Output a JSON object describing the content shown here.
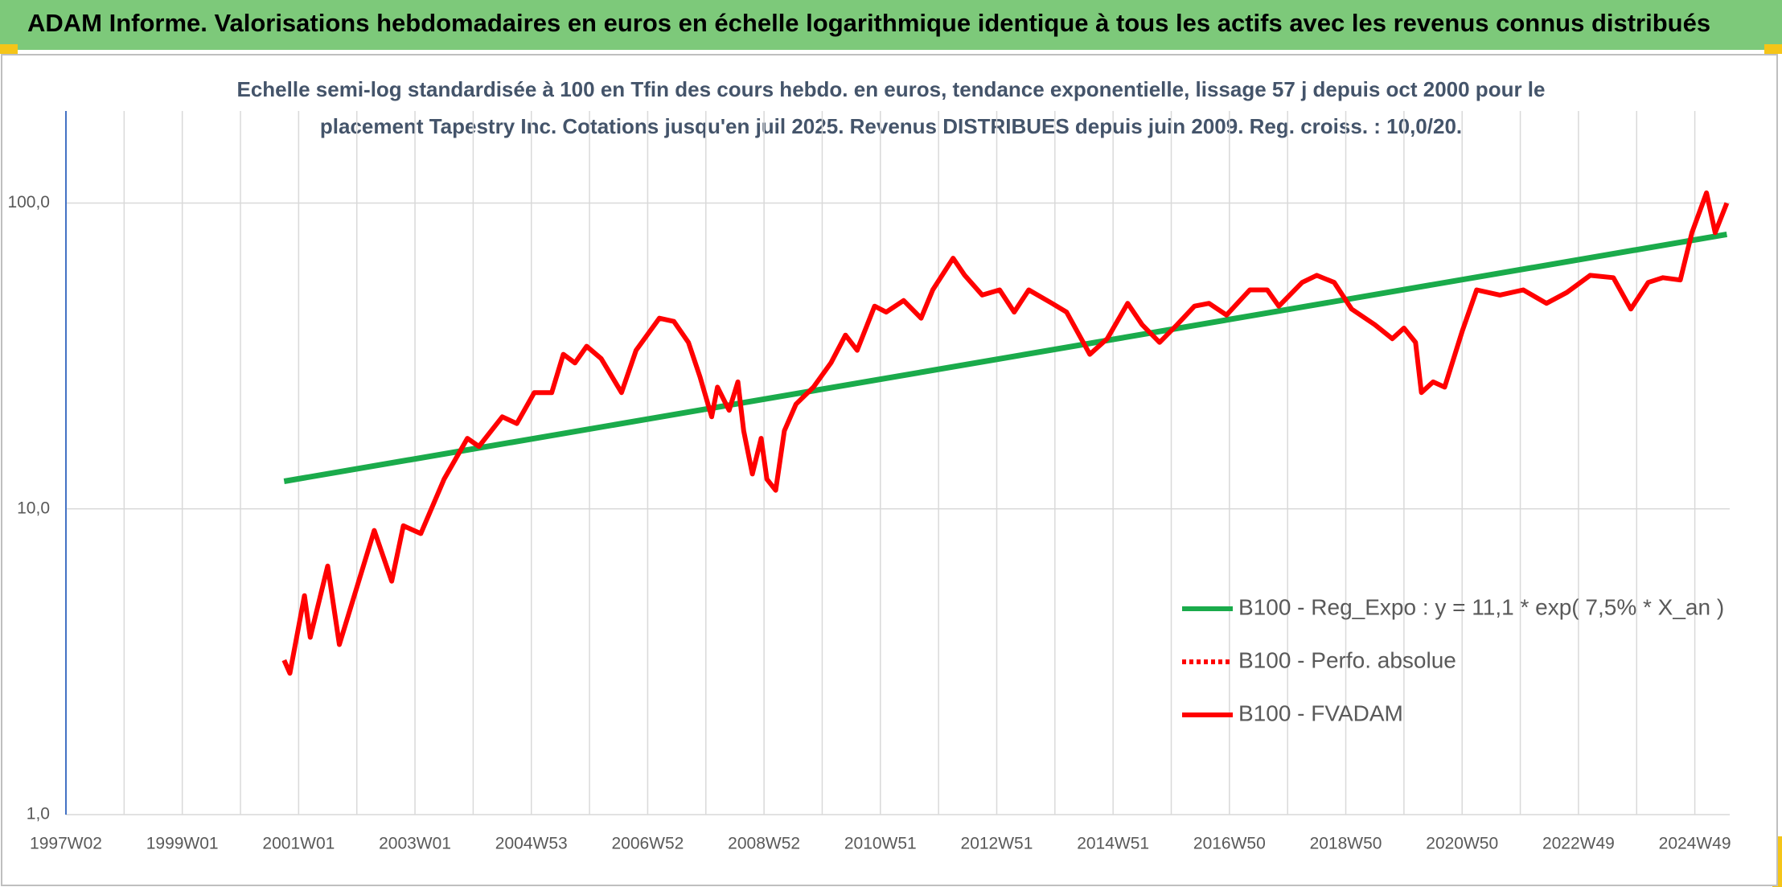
{
  "chart_data": {
    "type": "line",
    "title": "ADAM Informe. Valorisations hebdomadaires en euros en échelle logarithmique identique à tous les actifs avec les revenus connus distribués",
    "subtitle": [
      "Echelle semi-log standardisée à 100 en Tfin des cours hebdo. en euros, tendance exponentielle, lissage 57 j depuis oct 2000 pour le",
      "placement Tapestry Inc. Cotations jusqu'en juil 2025. Revenus DISTRIBUES depuis juin 2009. Reg. croiss. : 10,0/20."
    ],
    "log_scale": true,
    "grid": true,
    "xlim": [
      1997,
      2025.6
    ],
    "xticks": [
      {
        "value": 1997,
        "label": "1997W02"
      },
      {
        "value": 1999,
        "label": "1999W01"
      },
      {
        "value": 2001,
        "label": "2001W01"
      },
      {
        "value": 2003,
        "label": "2003W01"
      },
      {
        "value": 2005,
        "label": "2004W53"
      },
      {
        "value": 2007,
        "label": "2006W52"
      },
      {
        "value": 2009,
        "label": "2008W52"
      },
      {
        "value": 2011,
        "label": "2010W51"
      },
      {
        "value": 2013,
        "label": "2012W51"
      },
      {
        "value": 2015,
        "label": "2014W51"
      },
      {
        "value": 2017,
        "label": "2016W50"
      },
      {
        "value": 2019,
        "label": "2018W50"
      },
      {
        "value": 2021,
        "label": "2020W50"
      },
      {
        "value": 2023,
        "label": "2022W49"
      },
      {
        "value": 2025,
        "label": "2024W49"
      }
    ],
    "xgrid": [
      1998,
      2000,
      2002,
      2004,
      2006,
      2008,
      2010,
      2012,
      2014,
      2016,
      2018,
      2020,
      2022,
      2024
    ],
    "ylim": [
      1,
      200
    ],
    "yticks": [
      {
        "value": 1,
        "label": "1,0"
      },
      {
        "value": 10,
        "label": "10,0"
      },
      {
        "value": 100,
        "label": "100,0"
      }
    ],
    "series": [
      {
        "name": "B100 - Reg_Expo : y = 11,1 * exp( 7,5% *  X_an )",
        "color": "#1aab4b",
        "style": "solid",
        "x": [
          2000.75,
          2025.55
        ],
        "values": [
          12.3,
          79
        ]
      },
      {
        "name": "B100 - Perfo. absolue",
        "color": "#ff0000",
        "style": "dotted"
      },
      {
        "name": "B100 - FVADAM",
        "color": "#ff0000",
        "style": "solid",
        "x": [
          2000.75,
          2000.85,
          2001.1,
          2001.2,
          2001.5,
          2001.7,
          2002.3,
          2002.6,
          2002.8,
          2003.1,
          2003.5,
          2003.9,
          2004.1,
          2004.5,
          2004.75,
          2005.05,
          2005.35,
          2005.55,
          2005.75,
          2005.95,
          2006.2,
          2006.55,
          2006.8,
          2007.2,
          2007.45,
          2007.7,
          2007.9,
          2008.1,
          2008.2,
          2008.4,
          2008.55,
          2008.65,
          2008.8,
          2008.95,
          2009.05,
          2009.2,
          2009.35,
          2009.55,
          2009.85,
          2010.15,
          2010.4,
          2010.6,
          2010.9,
          2011.1,
          2011.4,
          2011.7,
          2011.9,
          2012.25,
          2012.45,
          2012.75,
          2013.05,
          2013.3,
          2013.55,
          2013.95,
          2014.2,
          2014.6,
          2014.9,
          2015.25,
          2015.5,
          2015.8,
          2016.1,
          2016.4,
          2016.65,
          2016.95,
          2017.35,
          2017.65,
          2017.85,
          2018.25,
          2018.5,
          2018.8,
          2019.1,
          2019.5,
          2019.8,
          2020.0,
          2020.2,
          2020.3,
          2020.5,
          2020.7,
          2021.0,
          2021.25,
          2021.65,
          2022.05,
          2022.45,
          2022.8,
          2023.2,
          2023.6,
          2023.9,
          2024.2,
          2024.45,
          2024.75,
          2024.95,
          2025.2,
          2025.35,
          2025.55
        ],
        "values": [
          3.2,
          2.9,
          5.2,
          3.8,
          6.5,
          3.6,
          8.5,
          5.8,
          8.8,
          8.3,
          12.5,
          17,
          16,
          20,
          19,
          24,
          24,
          32,
          30,
          34,
          31,
          24,
          33,
          42,
          41,
          35,
          27,
          20,
          25,
          21,
          26,
          18,
          13,
          17,
          12.5,
          11.5,
          18,
          22,
          25,
          30,
          37,
          33,
          46,
          44,
          48,
          42,
          52,
          66,
          58,
          50,
          52,
          44,
          52,
          47,
          44,
          32,
          36,
          47,
          40,
          35,
          40,
          46,
          47,
          43,
          52,
          52,
          46,
          55,
          58,
          55,
          45,
          40,
          36,
          39,
          35,
          24,
          26,
          25,
          38,
          52,
          50,
          52,
          47,
          51,
          58,
          57,
          45,
          55,
          57,
          56,
          80,
          108,
          80,
          100
        ]
      }
    ]
  }
}
